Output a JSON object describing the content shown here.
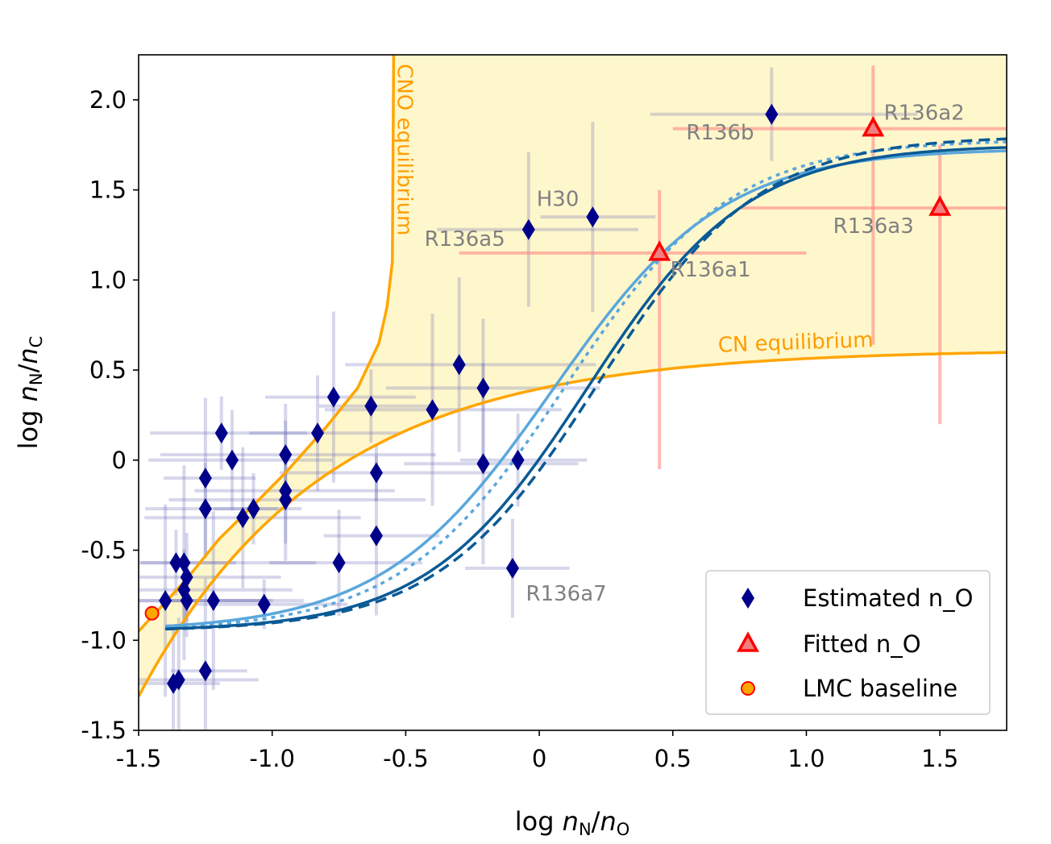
{
  "chart_data": {
    "type": "scatter",
    "xlabel": "log n_N/n_O",
    "ylabel": "log n_N/n_C",
    "xlim": [
      -1.5,
      1.75
    ],
    "ylim": [
      -1.5,
      2.25
    ],
    "xticks": [
      "-1.5",
      "-1.0",
      "-0.5",
      "0",
      "0.5",
      "1.0",
      "1.5"
    ],
    "xtick_values": [
      -1.5,
      -1.0,
      -0.5,
      0,
      0.5,
      1.0,
      1.5
    ],
    "yticks": [
      "-1.5",
      "-1.0",
      "-0.5",
      "0",
      "0.5",
      "1.0",
      "1.5",
      "2.0"
    ],
    "ytick_values": [
      -1.5,
      -1.0,
      -0.5,
      0,
      0.5,
      1.0,
      1.5,
      2.0
    ],
    "curve_labels": {
      "cno": "CNO equilibrium",
      "cn": "CN equilibrium"
    },
    "series": [
      {
        "name": "Estimated n_O",
        "marker": "diamond",
        "color": "#00008b",
        "points": [
          [
            -1.4,
            -0.78
          ],
          [
            -1.37,
            -1.24
          ],
          [
            -1.36,
            -0.57
          ],
          [
            -1.35,
            -1.22
          ],
          [
            -1.33,
            -0.72
          ],
          [
            -1.33,
            -0.57
          ],
          [
            -1.32,
            -0.78
          ],
          [
            -1.32,
            -0.65
          ],
          [
            -1.25,
            -0.1
          ],
          [
            -1.25,
            -0.27
          ],
          [
            -1.25,
            -1.17
          ],
          [
            -1.22,
            -0.78
          ],
          [
            -1.19,
            0.15
          ],
          [
            -1.15,
            0.0
          ],
          [
            -1.11,
            -0.32
          ],
          [
            -1.07,
            -0.27
          ],
          [
            -1.03,
            -0.8
          ],
          [
            -0.95,
            0.03
          ],
          [
            -0.95,
            -0.17
          ],
          [
            -0.95,
            -0.22
          ],
          [
            -0.83,
            0.15
          ],
          [
            -0.77,
            0.35
          ],
          [
            -0.75,
            -0.57
          ],
          [
            -0.63,
            0.3
          ],
          [
            -0.61,
            -0.07
          ],
          [
            -0.61,
            -0.42
          ],
          [
            -0.4,
            0.28
          ],
          [
            -0.3,
            0.53
          ],
          [
            -0.21,
            0.4
          ],
          [
            -0.21,
            -0.02
          ],
          [
            -0.08,
            0.0
          ],
          [
            -0.1,
            -0.6
          ],
          [
            -0.04,
            1.28
          ],
          [
            0.2,
            1.35
          ],
          [
            0.87,
            1.92
          ]
        ]
      },
      {
        "name": "Fitted n_O",
        "marker": "triangle",
        "color": "#ff0000",
        "points": [
          [
            0.45,
            1.15
          ],
          [
            1.25,
            1.84
          ],
          [
            1.5,
            1.4
          ]
        ]
      },
      {
        "name": "LMC baseline",
        "marker": "circle",
        "color": "#ffa500",
        "points": [
          [
            -1.45,
            -0.85
          ]
        ]
      }
    ],
    "annotations": [
      {
        "text": "R136a2",
        "x": 1.29,
        "y": 1.89
      },
      {
        "text": "R136b",
        "x": 0.55,
        "y": 1.78
      },
      {
        "text": "H30",
        "x": -0.01,
        "y": 1.41
      },
      {
        "text": "R136a5",
        "x": -0.43,
        "y": 1.19
      },
      {
        "text": "R136a3",
        "x": 1.1,
        "y": 1.26
      },
      {
        "text": "R136a1",
        "x": 0.49,
        "y": 1.02
      },
      {
        "text": "R136a7",
        "x": -0.05,
        "y": -0.78
      }
    ],
    "legend": {
      "position": "lower-right",
      "entries": [
        {
          "marker": "diamond",
          "label": "Estimated n_O"
        },
        {
          "marker": "triangle",
          "label": "Fitted n_O"
        },
        {
          "marker": "circle",
          "label": "LMC baseline"
        }
      ]
    }
  }
}
